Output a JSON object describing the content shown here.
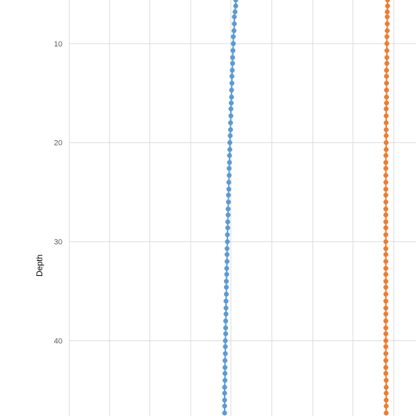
{
  "chart_data": {
    "type": "scatter",
    "ylabel": "Depth",
    "y_reversed": true,
    "ylim": [
      5.6,
      47.6
    ],
    "y_ticks": [
      10,
      20,
      30,
      40
    ],
    "grid": true,
    "legend": "none",
    "series": [
      {
        "color": "#5B9BD5",
        "points": [
          [
            0.48,
            5.6
          ],
          [
            0.48,
            6.2
          ],
          [
            0.478,
            6.8
          ],
          [
            0.476,
            7.3
          ],
          [
            0.476,
            8.0
          ],
          [
            0.475,
            8.7
          ],
          [
            0.473,
            9.3
          ],
          [
            0.473,
            10.0
          ],
          [
            0.472,
            10.7
          ],
          [
            0.471,
            11.4
          ],
          [
            0.471,
            12.0
          ],
          [
            0.47,
            12.7
          ],
          [
            0.469,
            13.3
          ],
          [
            0.469,
            14.0
          ],
          [
            0.468,
            14.7
          ],
          [
            0.468,
            15.4
          ],
          [
            0.467,
            16.0
          ],
          [
            0.466,
            16.6
          ],
          [
            0.466,
            17.3
          ],
          [
            0.465,
            18.0
          ],
          [
            0.465,
            18.7
          ],
          [
            0.464,
            19.3
          ],
          [
            0.463,
            20.0
          ],
          [
            0.463,
            20.7
          ],
          [
            0.462,
            21.3
          ],
          [
            0.462,
            22.0
          ],
          [
            0.461,
            22.6
          ],
          [
            0.461,
            23.3
          ],
          [
            0.46,
            24.0
          ],
          [
            0.46,
            24.7
          ],
          [
            0.459,
            25.3
          ],
          [
            0.459,
            26.0
          ],
          [
            0.458,
            26.7
          ],
          [
            0.458,
            27.3
          ],
          [
            0.457,
            28.0
          ],
          [
            0.457,
            28.6
          ],
          [
            0.456,
            29.3
          ],
          [
            0.456,
            30.0
          ],
          [
            0.455,
            30.7
          ],
          [
            0.455,
            31.3
          ],
          [
            0.455,
            32.0
          ],
          [
            0.454,
            32.7
          ],
          [
            0.454,
            33.3
          ],
          [
            0.453,
            34.0
          ],
          [
            0.453,
            34.6
          ],
          [
            0.453,
            35.3
          ],
          [
            0.452,
            36.0
          ],
          [
            0.452,
            36.7
          ],
          [
            0.452,
            37.3
          ],
          [
            0.451,
            38.0
          ],
          [
            0.451,
            38.7
          ],
          [
            0.451,
            39.3
          ],
          [
            0.45,
            40.0
          ],
          [
            0.45,
            40.6
          ],
          [
            0.45,
            41.3
          ],
          [
            0.449,
            42.0
          ],
          [
            0.449,
            42.7
          ],
          [
            0.449,
            43.3
          ],
          [
            0.449,
            44.0
          ],
          [
            0.448,
            44.7
          ],
          [
            0.448,
            45.3
          ],
          [
            0.448,
            46.0
          ],
          [
            0.448,
            46.6
          ],
          [
            0.448,
            47.3
          ]
        ]
      },
      {
        "color": "#ED7D31",
        "points": [
          [
            0.918,
            5.6
          ],
          [
            0.918,
            6.2
          ],
          [
            0.917,
            6.8
          ],
          [
            0.917,
            7.3
          ],
          [
            0.917,
            8.0
          ],
          [
            0.917,
            8.7
          ],
          [
            0.916,
            9.3
          ],
          [
            0.916,
            10.0
          ],
          [
            0.916,
            10.7
          ],
          [
            0.916,
            11.4
          ],
          [
            0.916,
            12.0
          ],
          [
            0.915,
            12.7
          ],
          [
            0.915,
            13.3
          ],
          [
            0.915,
            14.0
          ],
          [
            0.915,
            14.7
          ],
          [
            0.915,
            15.4
          ],
          [
            0.915,
            16.0
          ],
          [
            0.914,
            16.6
          ],
          [
            0.914,
            17.3
          ],
          [
            0.914,
            18.0
          ],
          [
            0.914,
            18.7
          ],
          [
            0.914,
            19.3
          ],
          [
            0.914,
            20.0
          ],
          [
            0.914,
            20.7
          ],
          [
            0.913,
            21.3
          ],
          [
            0.913,
            22.0
          ],
          [
            0.913,
            22.6
          ],
          [
            0.913,
            23.3
          ],
          [
            0.913,
            24.0
          ],
          [
            0.913,
            24.7
          ],
          [
            0.913,
            25.3
          ],
          [
            0.913,
            26.0
          ],
          [
            0.913,
            26.7
          ],
          [
            0.913,
            27.3
          ],
          [
            0.913,
            28.0
          ],
          [
            0.913,
            28.6
          ],
          [
            0.913,
            29.3
          ],
          [
            0.913,
            30.0
          ],
          [
            0.913,
            30.7
          ],
          [
            0.913,
            31.3
          ],
          [
            0.913,
            32.0
          ],
          [
            0.913,
            32.7
          ],
          [
            0.913,
            33.3
          ],
          [
            0.913,
            34.0
          ],
          [
            0.913,
            34.6
          ],
          [
            0.913,
            35.3
          ],
          [
            0.913,
            36.0
          ],
          [
            0.913,
            36.7
          ],
          [
            0.913,
            37.3
          ],
          [
            0.913,
            38.0
          ],
          [
            0.913,
            38.7
          ],
          [
            0.913,
            39.3
          ],
          [
            0.913,
            40.0
          ],
          [
            0.913,
            40.6
          ],
          [
            0.913,
            41.3
          ],
          [
            0.913,
            42.0
          ],
          [
            0.913,
            42.7
          ],
          [
            0.913,
            43.3
          ],
          [
            0.914,
            44.0
          ],
          [
            0.914,
            44.7
          ],
          [
            0.914,
            45.3
          ],
          [
            0.914,
            46.0
          ],
          [
            0.914,
            46.6
          ],
          [
            0.914,
            47.3
          ]
        ]
      }
    ]
  }
}
